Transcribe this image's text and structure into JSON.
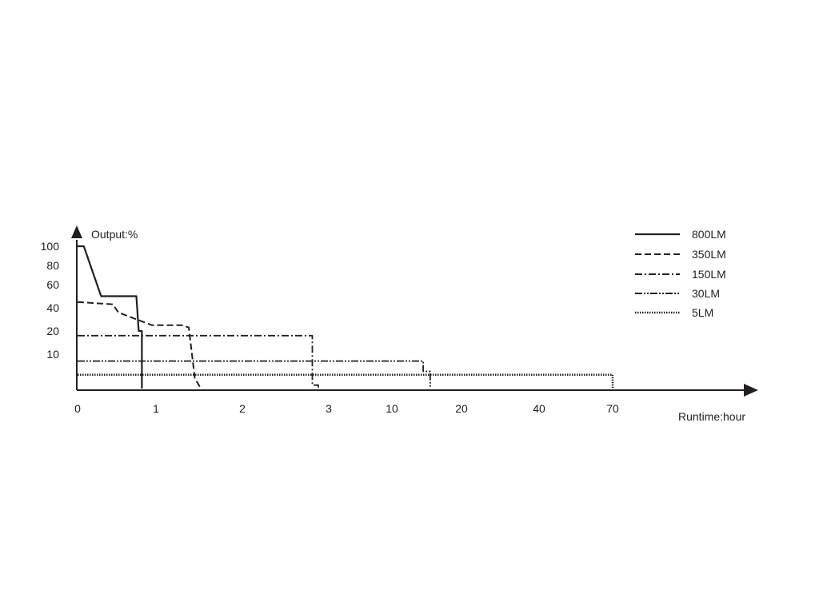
{
  "chart_data": {
    "type": "line",
    "title": "",
    "ylabel": "Output:%",
    "xlabel": "Runtime:hour",
    "ylim": [
      0,
      100
    ],
    "y_ticks": [
      "100",
      "80",
      "60",
      "40",
      "20",
      "10"
    ],
    "x_ticks": [
      "0",
      "1",
      "2",
      "3",
      "10",
      "20",
      "40",
      "70"
    ],
    "legend_position": "top-right",
    "grid": false,
    "series": [
      {
        "name": "800LM",
        "style": "solid",
        "points": [
          [
            0,
            100
          ],
          [
            0.08,
            100
          ],
          [
            0.3,
            50
          ],
          [
            0.75,
            50
          ],
          [
            0.78,
            20
          ],
          [
            0.82,
            20
          ],
          [
            0.82,
            0
          ]
        ]
      },
      {
        "name": "350LM",
        "style": "dashed",
        "points": [
          [
            0,
            45
          ],
          [
            0.45,
            43
          ],
          [
            0.52,
            36
          ],
          [
            0.95,
            25
          ],
          [
            1.3,
            25
          ],
          [
            1.38,
            23
          ],
          [
            1.45,
            3
          ],
          [
            1.52,
            0
          ]
        ]
      },
      {
        "name": "150LM",
        "style": "dash-dot",
        "points": [
          [
            0,
            18
          ],
          [
            2.81,
            18
          ],
          [
            2.81,
            1
          ],
          [
            2.88,
            1
          ],
          [
            2.88,
            0
          ]
        ]
      },
      {
        "name": "30LM",
        "style": "dash-dot-dot",
        "points": [
          [
            0,
            8
          ],
          [
            14.5,
            8
          ],
          [
            14.5,
            5
          ],
          [
            15.5,
            5
          ],
          [
            15.5,
            0
          ]
        ]
      },
      {
        "name": "5LM",
        "style": "dotted",
        "points": [
          [
            0,
            4
          ],
          [
            70,
            4
          ],
          [
            70,
            0
          ]
        ]
      }
    ]
  },
  "ui": {
    "x_ticks": [
      "0",
      "1",
      "2",
      "3",
      "10",
      "20",
      "40",
      "70"
    ],
    "y_ticks": [
      "100",
      "80",
      "60",
      "40",
      "20",
      "10"
    ],
    "ylabel": "Output:%",
    "xlabel": "Runtime:hour",
    "legend": [
      "800LM",
      "350LM",
      "150LM",
      "30LM",
      "5LM"
    ]
  },
  "colors": {
    "ink": "#231f20",
    "background": "#ffffff"
  }
}
